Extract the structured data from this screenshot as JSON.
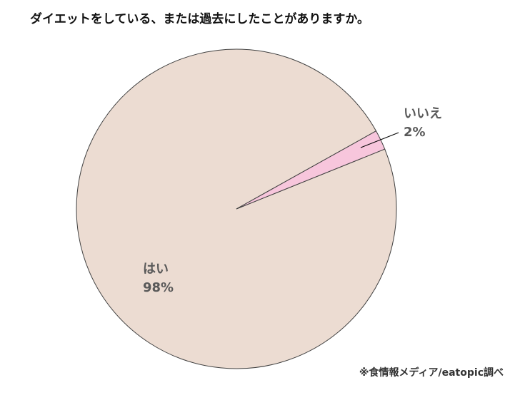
{
  "chart_data": {
    "type": "pie",
    "title": "ダイエットをしている、または過去にしたことがありますか。",
    "categories": [
      "はい",
      "いいえ"
    ],
    "values": [
      98,
      2
    ],
    "value_labels": [
      "98%",
      "2%"
    ],
    "colors": [
      "#ecdcd2",
      "#f7c6dc"
    ],
    "source": "※食情報メディア/eatopic調べ"
  }
}
